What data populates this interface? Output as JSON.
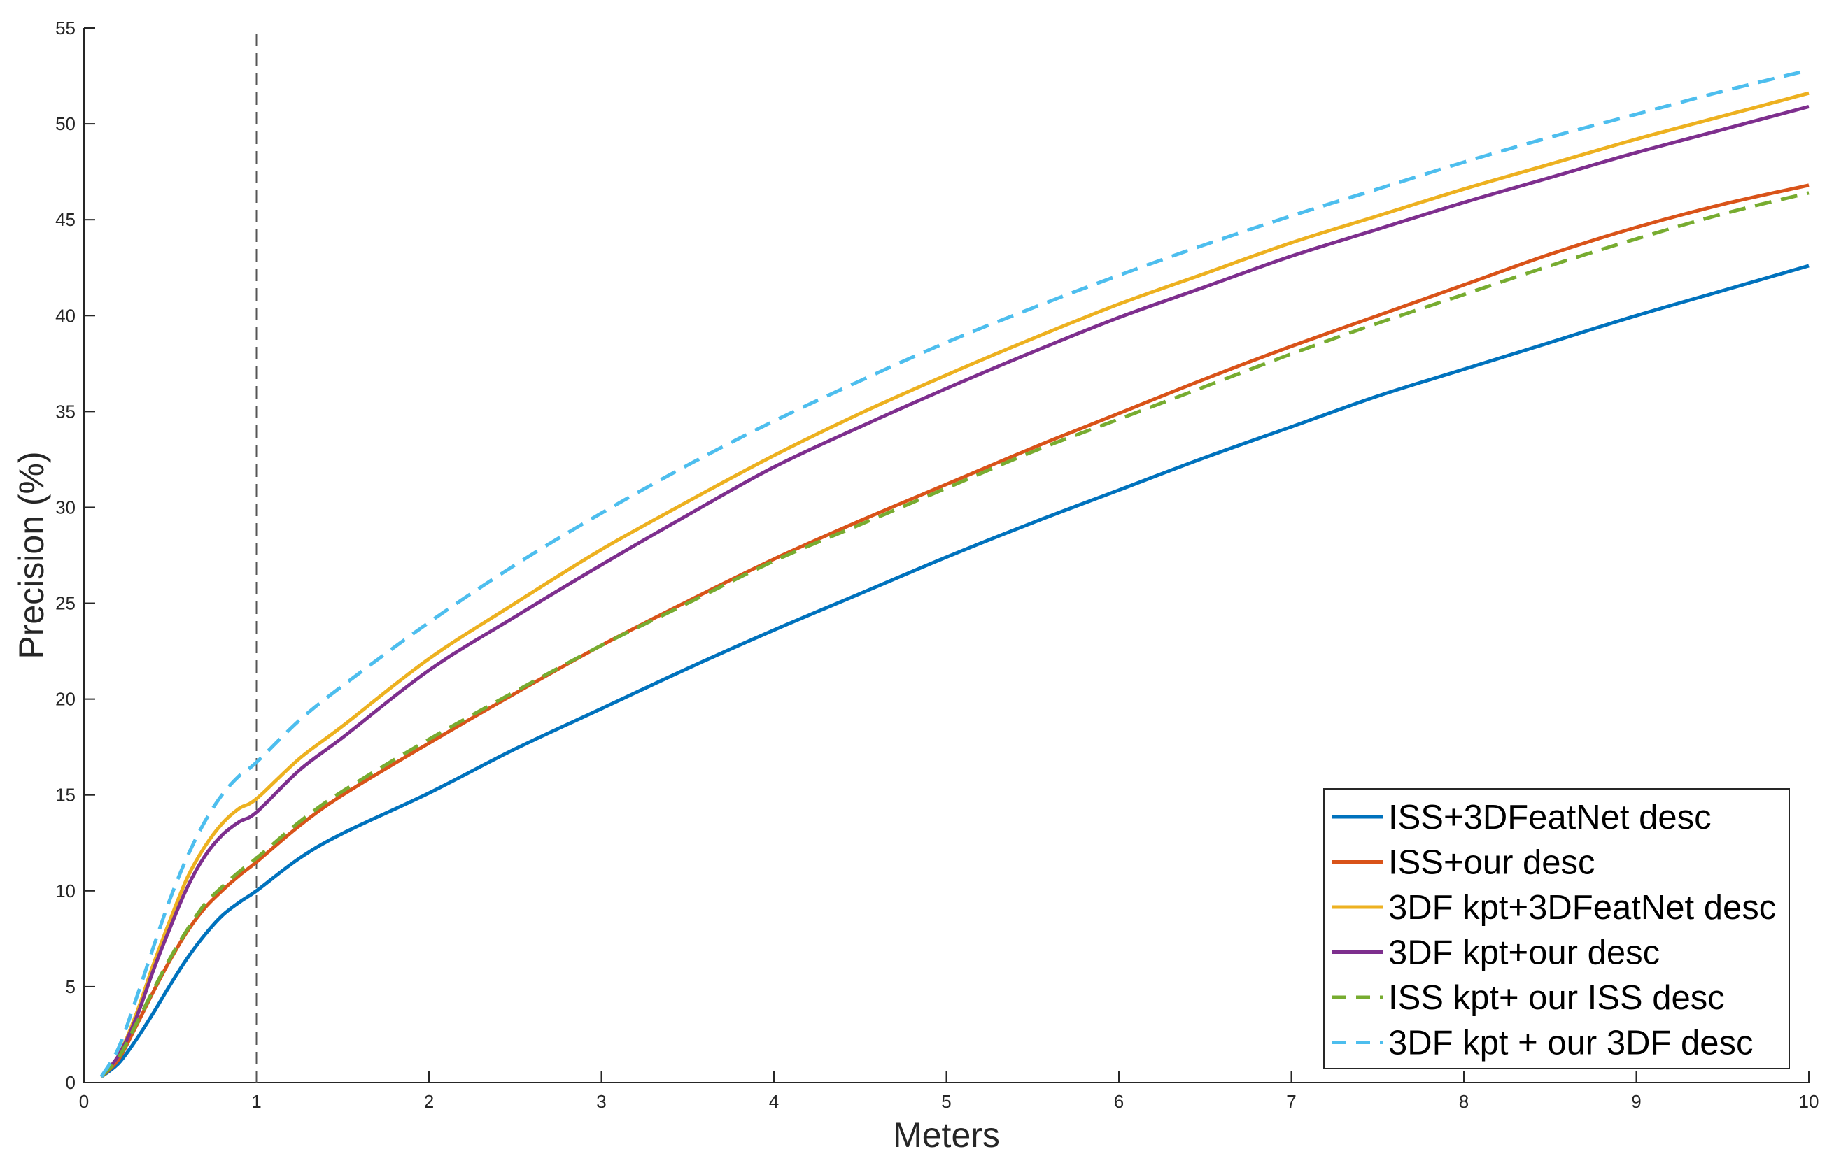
{
  "chart_data": {
    "type": "line",
    "title": "",
    "xlabel": "Meters",
    "ylabel": "Precision (%)",
    "xlim": [
      0,
      10
    ],
    "ylim": [
      0,
      55
    ],
    "xticks": [
      "0",
      "1",
      "2",
      "3",
      "4",
      "5",
      "6",
      "7",
      "8",
      "9",
      "10"
    ],
    "yticks": [
      "0",
      "5",
      "10",
      "15",
      "20",
      "25",
      "30",
      "35",
      "40",
      "45",
      "50",
      "55"
    ],
    "grid": false,
    "legend_position": "bottom-right",
    "reference_line": {
      "x": 1,
      "style": "dashed",
      "color": "#555555"
    },
    "x": [
      0.1,
      0.2,
      0.3,
      0.4,
      0.5,
      0.6,
      0.7,
      0.8,
      0.9,
      1.0,
      1.25,
      1.5,
      2,
      2.5,
      3,
      3.5,
      4,
      4.5,
      5,
      5.5,
      6,
      6.5,
      7,
      7.5,
      8,
      8.5,
      9,
      9.5,
      10
    ],
    "series": [
      {
        "name": "ISS+3DFeatNet desc",
        "color": "#0072BD",
        "dash": "solid",
        "values": [
          0.3,
          1.0,
          2.2,
          3.6,
          5.1,
          6.5,
          7.7,
          8.7,
          9.4,
          10.0,
          11.7,
          13.0,
          15.1,
          17.4,
          19.5,
          21.6,
          23.6,
          25.5,
          27.4,
          29.2,
          30.9,
          32.6,
          34.2,
          35.8,
          37.2,
          38.6,
          40.0,
          41.3,
          42.6
        ]
      },
      {
        "name": "ISS+our desc",
        "color": "#D95319",
        "dash": "solid",
        "values": [
          0.3,
          1.2,
          2.9,
          4.7,
          6.4,
          7.9,
          9.1,
          10.0,
          10.8,
          11.5,
          13.4,
          15.0,
          17.7,
          20.3,
          22.8,
          25.1,
          27.3,
          29.3,
          31.2,
          33.1,
          34.9,
          36.7,
          38.4,
          40.0,
          41.6,
          43.2,
          44.6,
          45.8,
          46.8
        ]
      },
      {
        "name": "3DF kpt+3DFeatNet desc",
        "color": "#EDB120",
        "dash": "solid",
        "values": [
          0.3,
          1.4,
          3.5,
          6.1,
          8.5,
          10.7,
          12.3,
          13.5,
          14.3,
          14.8,
          16.9,
          18.6,
          22.1,
          25.0,
          27.8,
          30.3,
          32.7,
          34.9,
          36.9,
          38.8,
          40.6,
          42.2,
          43.8,
          45.2,
          46.6,
          47.9,
          49.2,
          50.4,
          51.6
        ]
      },
      {
        "name": "3DF kpt+our desc",
        "color": "#7E2F8E",
        "dash": "solid",
        "values": [
          0.3,
          1.4,
          3.3,
          5.8,
          8.1,
          10.2,
          11.8,
          12.9,
          13.6,
          14.1,
          16.3,
          18.0,
          21.5,
          24.3,
          27.0,
          29.6,
          32.1,
          34.2,
          36.2,
          38.1,
          39.9,
          41.5,
          43.1,
          44.5,
          45.9,
          47.2,
          48.5,
          49.7,
          50.9
        ]
      },
      {
        "name": "ISS kpt+ our ISS desc",
        "color": "#77AC30",
        "dash": "dashed",
        "values": [
          0.3,
          1.3,
          3.0,
          4.8,
          6.5,
          8.0,
          9.3,
          10.2,
          11.0,
          11.7,
          13.6,
          15.2,
          17.9,
          20.4,
          22.8,
          25.0,
          27.2,
          29.1,
          31.0,
          32.9,
          34.6,
          36.3,
          38.0,
          39.6,
          41.1,
          42.6,
          44.0,
          45.3,
          46.4
        ]
      },
      {
        "name": "3DF kpt + our 3DF desc",
        "color": "#4DBEEE",
        "dash": "dashed",
        "values": [
          0.3,
          1.8,
          4.3,
          7.0,
          9.6,
          11.8,
          13.6,
          15.0,
          16.0,
          16.7,
          18.9,
          20.7,
          24.0,
          27.0,
          29.7,
          32.2,
          34.5,
          36.6,
          38.6,
          40.4,
          42.1,
          43.7,
          45.2,
          46.6,
          48.0,
          49.3,
          50.5,
          51.7,
          52.8
        ]
      }
    ]
  }
}
